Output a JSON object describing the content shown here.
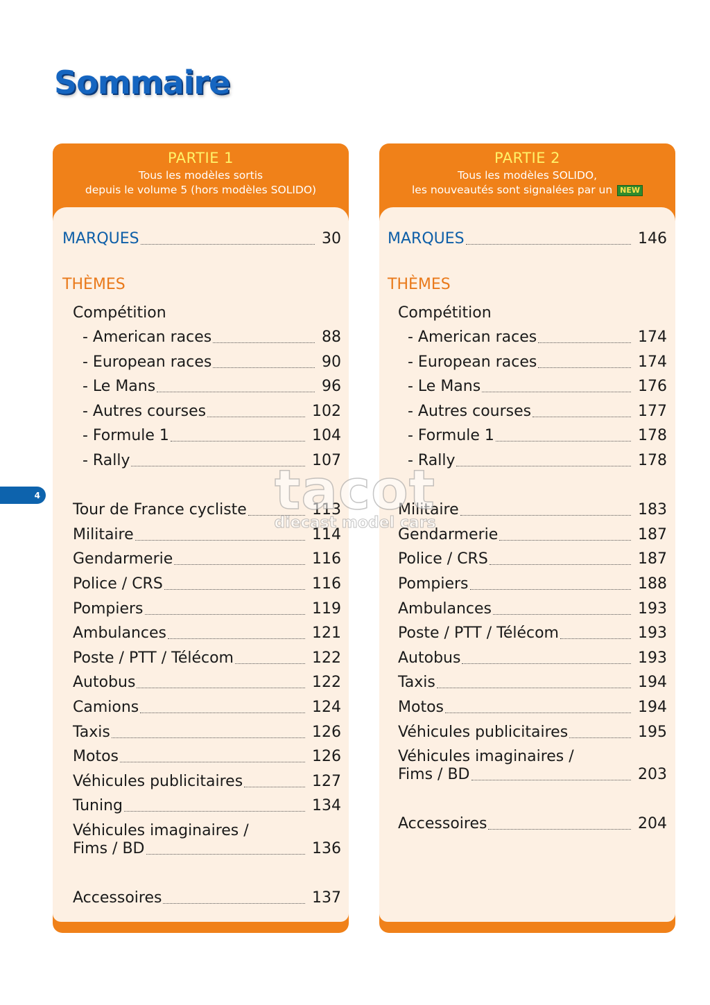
{
  "page": {
    "title": "Sommaire",
    "page_number": "4"
  },
  "watermark": {
    "main": "tacot",
    "sub": "diecast model cars"
  },
  "part1": {
    "title": "PARTIE 1",
    "subtitle_line1": "Tous les modèles sortis",
    "subtitle_line2": "depuis le volume 5 (hors modèles SOLIDO)",
    "marques": {
      "label": "MARQUES",
      "page": "30"
    },
    "themes_heading": "THÈMES",
    "competition_heading": "Compétition",
    "competition": [
      {
        "label": "- American races",
        "page": "88"
      },
      {
        "label": "- European races",
        "page": "90"
      },
      {
        "label": "- Le Mans",
        "page": "96"
      },
      {
        "label": "- Autres courses",
        "page": "102"
      },
      {
        "label": "- Formule 1",
        "page": "104"
      },
      {
        "label": "- Rally",
        "page": "107"
      }
    ],
    "themes": [
      {
        "label": "Tour de France cycliste",
        "page": "113"
      },
      {
        "label": "Militaire",
        "page": "114"
      },
      {
        "label": "Gendarmerie",
        "page": "116"
      },
      {
        "label": "Police / CRS",
        "page": "116"
      },
      {
        "label": "Pompiers",
        "page": "119"
      },
      {
        "label": "Ambulances",
        "page": "121"
      },
      {
        "label": "Poste / PTT / Télécom",
        "page": "122"
      },
      {
        "label": "Autobus",
        "page": "122"
      },
      {
        "label": "Camions",
        "page": "124"
      },
      {
        "label": "Taxis",
        "page": "126"
      },
      {
        "label": "Motos",
        "page": "126"
      },
      {
        "label": "Véhicules publicitaires",
        "page": "127"
      },
      {
        "label": "Tuning",
        "page": "134"
      }
    ],
    "imaginaires": {
      "line1": "Véhicules imaginaires /",
      "line2": "Fims / BD",
      "page": "136"
    },
    "accessoires": {
      "label": "Accessoires",
      "page": "137"
    }
  },
  "part2": {
    "title": "PARTIE 2",
    "subtitle_line1": "Tous les modèles SOLIDO,",
    "subtitle_line2": "les nouveautés sont signalées par un",
    "new_badge": "NEW",
    "marques": {
      "label": "MARQUES",
      "page": "146"
    },
    "themes_heading": "THÈMES",
    "competition_heading": "Compétition",
    "competition": [
      {
        "label": "- American races",
        "page": "174"
      },
      {
        "label": "- European races",
        "page": "174"
      },
      {
        "label": "- Le Mans",
        "page": "176"
      },
      {
        "label": "- Autres courses",
        "page": "177"
      },
      {
        "label": "- Formule 1",
        "page": "178"
      },
      {
        "label": "- Rally",
        "page": "178"
      }
    ],
    "themes": [
      {
        "label": "Militaire",
        "page": "183"
      },
      {
        "label": "Gendarmerie",
        "page": "187"
      },
      {
        "label": "Police / CRS",
        "page": "187"
      },
      {
        "label": "Pompiers",
        "page": "188"
      },
      {
        "label": "Ambulances",
        "page": "193"
      },
      {
        "label": "Poste / PTT / Télécom",
        "page": "193"
      },
      {
        "label": "Autobus",
        "page": "193"
      },
      {
        "label": "Taxis",
        "page": "194"
      },
      {
        "label": "Motos",
        "page": "194"
      },
      {
        "label": "Véhicules publicitaires",
        "page": "195"
      }
    ],
    "imaginaires": {
      "line1": "Véhicules imaginaires /",
      "line2": "Fims / BD",
      "page": "203"
    },
    "accessoires": {
      "label": "Accessoires",
      "page": "204"
    }
  }
}
